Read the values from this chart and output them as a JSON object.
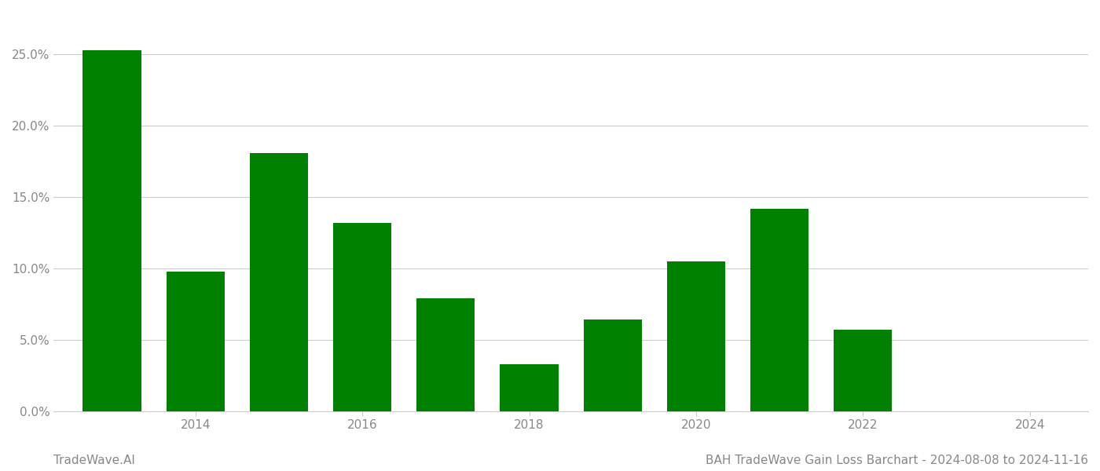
{
  "years": [
    2013,
    2014,
    2015,
    2016,
    2017,
    2018,
    2019,
    2020,
    2021,
    2022,
    2023
  ],
  "values": [
    0.253,
    0.098,
    0.181,
    0.132,
    0.079,
    0.033,
    0.064,
    0.105,
    0.142,
    0.057,
    0.0
  ],
  "bar_color": "#008000",
  "title": "BAH TradeWave Gain Loss Barchart - 2024-08-08 to 2024-11-16",
  "ylabel": "",
  "xlabel": "",
  "ylim": [
    0,
    0.28
  ],
  "yticks": [
    0.0,
    0.05,
    0.1,
    0.15,
    0.2,
    0.25
  ],
  "ytick_labels": [
    "0.0%",
    "5.0%",
    "10.0%",
    "15.0%",
    "20.0%",
    "25.0%"
  ],
  "xtick_positions": [
    2014,
    2016,
    2018,
    2020,
    2022,
    2024
  ],
  "xtick_labels": [
    "2014",
    "2016",
    "2018",
    "2020",
    "2022",
    "2024"
  ],
  "xlim_left": 2012.3,
  "xlim_right": 2024.7,
  "watermark_text": "TradeWave.AI",
  "background_color": "#ffffff",
  "grid_color": "#cccccc",
  "bar_width": 0.7,
  "title_fontsize": 11,
  "tick_fontsize": 11,
  "watermark_fontsize": 11
}
